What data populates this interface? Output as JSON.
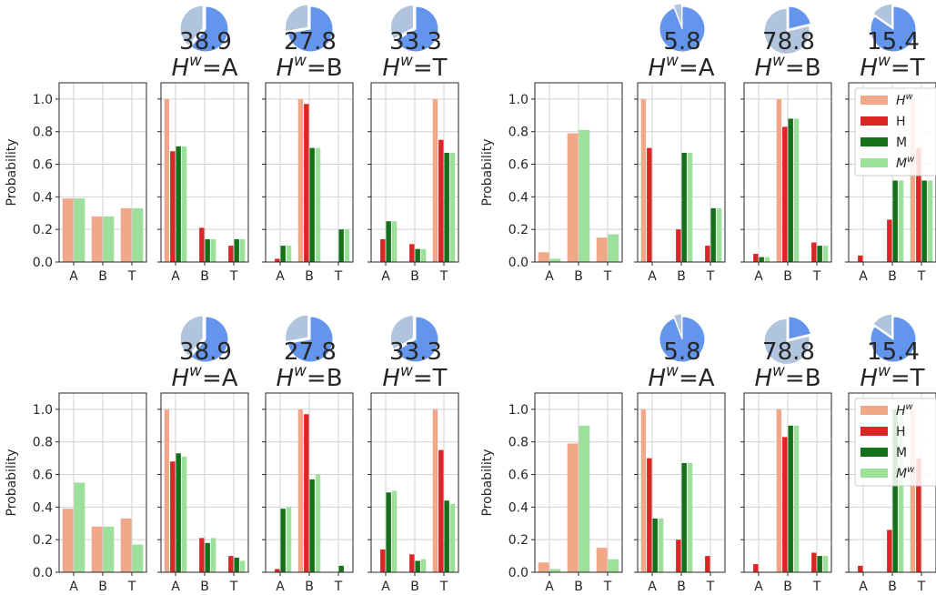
{
  "chart_data": [
    {
      "type": "bar",
      "ylabel": "Probability",
      "ylim": [
        0,
        1.1
      ],
      "yticks": [
        "0.0",
        "0.2",
        "0.4",
        "0.6",
        "0.8",
        "1.0"
      ],
      "categories": [
        "A",
        "B",
        "T"
      ],
      "series": [
        {
          "name": "Hw",
          "values": [
            0.39,
            0.28,
            0.33
          ]
        },
        {
          "name": "Mw",
          "values": [
            0.39,
            0.28,
            0.33
          ]
        }
      ]
    },
    {
      "type": "bar",
      "categories": [
        "A",
        "B",
        "T"
      ],
      "ylim": [
        0,
        1.1
      ],
      "title_prefix": "H",
      "title_sup": "w",
      "title_value": "=A",
      "pie": {
        "label": "38.9",
        "fraction": 0.389
      },
      "series": [
        {
          "name": "Hw",
          "values": [
            1.0,
            0.0,
            0.0
          ]
        },
        {
          "name": "H",
          "values": [
            0.68,
            0.21,
            0.1
          ]
        },
        {
          "name": "M",
          "values": [
            0.71,
            0.14,
            0.14
          ]
        },
        {
          "name": "Mw",
          "values": [
            0.71,
            0.14,
            0.14
          ]
        }
      ]
    },
    {
      "type": "bar",
      "categories": [
        "A",
        "B",
        "T"
      ],
      "ylim": [
        0,
        1.1
      ],
      "title_prefix": "H",
      "title_sup": "w",
      "title_value": "=B",
      "pie": {
        "label": "27.8",
        "fraction": 0.278
      },
      "series": [
        {
          "name": "Hw",
          "values": [
            0.0,
            1.0,
            0.0
          ]
        },
        {
          "name": "H",
          "values": [
            0.02,
            0.97,
            0.0
          ]
        },
        {
          "name": "M",
          "values": [
            0.1,
            0.7,
            0.2
          ]
        },
        {
          "name": "Mw",
          "values": [
            0.1,
            0.7,
            0.2
          ]
        }
      ]
    },
    {
      "type": "bar",
      "categories": [
        "A",
        "B",
        "T"
      ],
      "ylim": [
        0,
        1.1
      ],
      "title_prefix": "H",
      "title_sup": "w",
      "title_value": "=T",
      "pie": {
        "label": "33.3",
        "fraction": 0.333
      },
      "series": [
        {
          "name": "Hw",
          "values": [
            0.0,
            0.0,
            1.0
          ]
        },
        {
          "name": "H",
          "values": [
            0.14,
            0.11,
            0.75
          ]
        },
        {
          "name": "M",
          "values": [
            0.25,
            0.08,
            0.67
          ]
        },
        {
          "name": "Mw",
          "values": [
            0.25,
            0.08,
            0.67
          ]
        }
      ]
    },
    {
      "type": "bar",
      "ylabel": "Probability",
      "ylim": [
        0,
        1.1
      ],
      "yticks": [
        "0.0",
        "0.2",
        "0.4",
        "0.6",
        "0.8",
        "1.0"
      ],
      "categories": [
        "A",
        "B",
        "T"
      ],
      "series": [
        {
          "name": "Hw",
          "values": [
            0.06,
            0.79,
            0.15
          ]
        },
        {
          "name": "Mw",
          "values": [
            0.02,
            0.81,
            0.17
          ]
        }
      ]
    },
    {
      "type": "bar",
      "categories": [
        "A",
        "B",
        "T"
      ],
      "ylim": [
        0,
        1.1
      ],
      "title_prefix": "H",
      "title_sup": "w",
      "title_value": "=A",
      "pie": {
        "label": "5.8",
        "fraction": 0.058
      },
      "series": [
        {
          "name": "Hw",
          "values": [
            1.0,
            0.0,
            0.0
          ]
        },
        {
          "name": "H",
          "values": [
            0.7,
            0.2,
            0.1
          ]
        },
        {
          "name": "M",
          "values": [
            0.0,
            0.67,
            0.33
          ]
        },
        {
          "name": "Mw",
          "values": [
            0.0,
            0.67,
            0.33
          ]
        }
      ]
    },
    {
      "type": "bar",
      "categories": [
        "A",
        "B",
        "T"
      ],
      "ylim": [
        0,
        1.1
      ],
      "title_prefix": "H",
      "title_sup": "w",
      "title_value": "=B",
      "pie": {
        "label": "78.8",
        "fraction": 0.788
      },
      "series": [
        {
          "name": "Hw",
          "values": [
            0.0,
            1.0,
            0.0
          ]
        },
        {
          "name": "H",
          "values": [
            0.05,
            0.83,
            0.12
          ]
        },
        {
          "name": "M",
          "values": [
            0.03,
            0.88,
            0.1
          ]
        },
        {
          "name": "Mw",
          "values": [
            0.03,
            0.88,
            0.1
          ]
        }
      ]
    },
    {
      "type": "bar",
      "categories": [
        "A",
        "B",
        "T"
      ],
      "ylim": [
        0,
        1.1
      ],
      "title_prefix": "H",
      "title_sup": "w",
      "title_value": "=T",
      "pie": {
        "label": "15.4",
        "fraction": 0.154
      },
      "series": [
        {
          "name": "Hw",
          "values": [
            0.0,
            0.0,
            1.0
          ]
        },
        {
          "name": "H",
          "values": [
            0.04,
            0.26,
            0.7
          ]
        },
        {
          "name": "M",
          "values": [
            0.0,
            0.5,
            0.5
          ]
        },
        {
          "name": "Mw",
          "values": [
            0.0,
            0.5,
            0.5
          ]
        }
      ],
      "legend": {
        "position": "upper-right",
        "entries": [
          {
            "name": "Hw",
            "label": "H",
            "sup": "w",
            "italic": true
          },
          {
            "name": "H",
            "label": "H",
            "sup": "",
            "italic": false
          },
          {
            "name": "M",
            "label": "M",
            "sup": "",
            "italic": false
          },
          {
            "name": "Mw",
            "label": "M",
            "sup": "w",
            "italic": true
          }
        ]
      }
    },
    {
      "type": "bar",
      "ylabel": "Probability",
      "ylim": [
        0,
        1.1
      ],
      "yticks": [
        "0.0",
        "0.2",
        "0.4",
        "0.6",
        "0.8",
        "1.0"
      ],
      "categories": [
        "A",
        "B",
        "T"
      ],
      "series": [
        {
          "name": "Hw",
          "values": [
            0.39,
            0.28,
            0.33
          ]
        },
        {
          "name": "Mw",
          "values": [
            0.55,
            0.28,
            0.17
          ]
        }
      ]
    },
    {
      "type": "bar",
      "categories": [
        "A",
        "B",
        "T"
      ],
      "ylim": [
        0,
        1.1
      ],
      "title_prefix": "H",
      "title_sup": "w",
      "title_value": "=A",
      "pie": {
        "label": "38.9",
        "fraction": 0.389
      },
      "series": [
        {
          "name": "Hw",
          "values": [
            1.0,
            0.0,
            0.0
          ]
        },
        {
          "name": "H",
          "values": [
            0.68,
            0.21,
            0.1
          ]
        },
        {
          "name": "M",
          "values": [
            0.73,
            0.18,
            0.09
          ]
        },
        {
          "name": "Mw",
          "values": [
            0.71,
            0.21,
            0.07
          ]
        }
      ]
    },
    {
      "type": "bar",
      "categories": [
        "A",
        "B",
        "T"
      ],
      "ylim": [
        0,
        1.1
      ],
      "title_prefix": "H",
      "title_sup": "w",
      "title_value": "=B",
      "pie": {
        "label": "27.8",
        "fraction": 0.278
      },
      "series": [
        {
          "name": "Hw",
          "values": [
            0.0,
            1.0,
            0.0
          ]
        },
        {
          "name": "H",
          "values": [
            0.02,
            0.97,
            0.0
          ]
        },
        {
          "name": "M",
          "values": [
            0.39,
            0.57,
            0.04
          ]
        },
        {
          "name": "Mw",
          "values": [
            0.4,
            0.6,
            0.0
          ]
        }
      ]
    },
    {
      "type": "bar",
      "categories": [
        "A",
        "B",
        "T"
      ],
      "ylim": [
        0,
        1.1
      ],
      "title_prefix": "H",
      "title_sup": "w",
      "title_value": "=T",
      "pie": {
        "label": "33.3",
        "fraction": 0.333
      },
      "series": [
        {
          "name": "Hw",
          "values": [
            0.0,
            0.0,
            1.0
          ]
        },
        {
          "name": "H",
          "values": [
            0.14,
            0.11,
            0.75
          ]
        },
        {
          "name": "M",
          "values": [
            0.49,
            0.07,
            0.44
          ]
        },
        {
          "name": "Mw",
          "values": [
            0.5,
            0.08,
            0.42
          ]
        }
      ]
    },
    {
      "type": "bar",
      "ylabel": "Probability",
      "ylim": [
        0,
        1.1
      ],
      "yticks": [
        "0.0",
        "0.2",
        "0.4",
        "0.6",
        "0.8",
        "1.0"
      ],
      "categories": [
        "A",
        "B",
        "T"
      ],
      "series": [
        {
          "name": "Hw",
          "values": [
            0.06,
            0.79,
            0.15
          ]
        },
        {
          "name": "Mw",
          "values": [
            0.02,
            0.9,
            0.08
          ]
        }
      ]
    },
    {
      "type": "bar",
      "categories": [
        "A",
        "B",
        "T"
      ],
      "ylim": [
        0,
        1.1
      ],
      "title_prefix": "H",
      "title_sup": "w",
      "title_value": "=A",
      "pie": {
        "label": "5.8",
        "fraction": 0.058
      },
      "series": [
        {
          "name": "Hw",
          "values": [
            1.0,
            0.0,
            0.0
          ]
        },
        {
          "name": "H",
          "values": [
            0.7,
            0.2,
            0.1
          ]
        },
        {
          "name": "M",
          "values": [
            0.33,
            0.67,
            0.0
          ]
        },
        {
          "name": "Mw",
          "values": [
            0.33,
            0.67,
            0.0
          ]
        }
      ]
    },
    {
      "type": "bar",
      "categories": [
        "A",
        "B",
        "T"
      ],
      "ylim": [
        0,
        1.1
      ],
      "title_prefix": "H",
      "title_sup": "w",
      "title_value": "=B",
      "pie": {
        "label": "78.8",
        "fraction": 0.788
      },
      "series": [
        {
          "name": "Hw",
          "values": [
            0.0,
            1.0,
            0.0
          ]
        },
        {
          "name": "H",
          "values": [
            0.05,
            0.83,
            0.12
          ]
        },
        {
          "name": "M",
          "values": [
            0.0,
            0.9,
            0.1
          ]
        },
        {
          "name": "Mw",
          "values": [
            0.0,
            0.9,
            0.1
          ]
        }
      ]
    },
    {
      "type": "bar",
      "categories": [
        "A",
        "B",
        "T"
      ],
      "ylim": [
        0,
        1.1
      ],
      "title_prefix": "H",
      "title_sup": "w",
      "title_value": "=T",
      "pie": {
        "label": "15.4",
        "fraction": 0.154
      },
      "series": [
        {
          "name": "Hw",
          "values": [
            0.0,
            0.0,
            1.0
          ]
        },
        {
          "name": "H",
          "values": [
            0.04,
            0.26,
            0.7
          ]
        },
        {
          "name": "M",
          "values": [
            0.0,
            1.0,
            0.0
          ]
        },
        {
          "name": "Mw",
          "values": [
            0.0,
            1.0,
            0.0
          ]
        }
      ],
      "legend": {
        "position": "upper-right",
        "entries": [
          {
            "name": "Hw",
            "label": "H",
            "sup": "w",
            "italic": true
          },
          {
            "name": "H",
            "label": "H",
            "sup": "",
            "italic": false
          },
          {
            "name": "M",
            "label": "M",
            "sup": "",
            "italic": false
          },
          {
            "name": "Mw",
            "label": "M",
            "sup": "w",
            "italic": true
          }
        ]
      }
    }
  ],
  "colors": {
    "Hw": "#f0a889",
    "H": "#dc2626",
    "M": "#15701a",
    "Mw": "#9ce09a",
    "pie_main": "#6495ed",
    "pie_minor": "#b0c4de",
    "grid": "#d2d2d2",
    "axis": "#262626"
  }
}
